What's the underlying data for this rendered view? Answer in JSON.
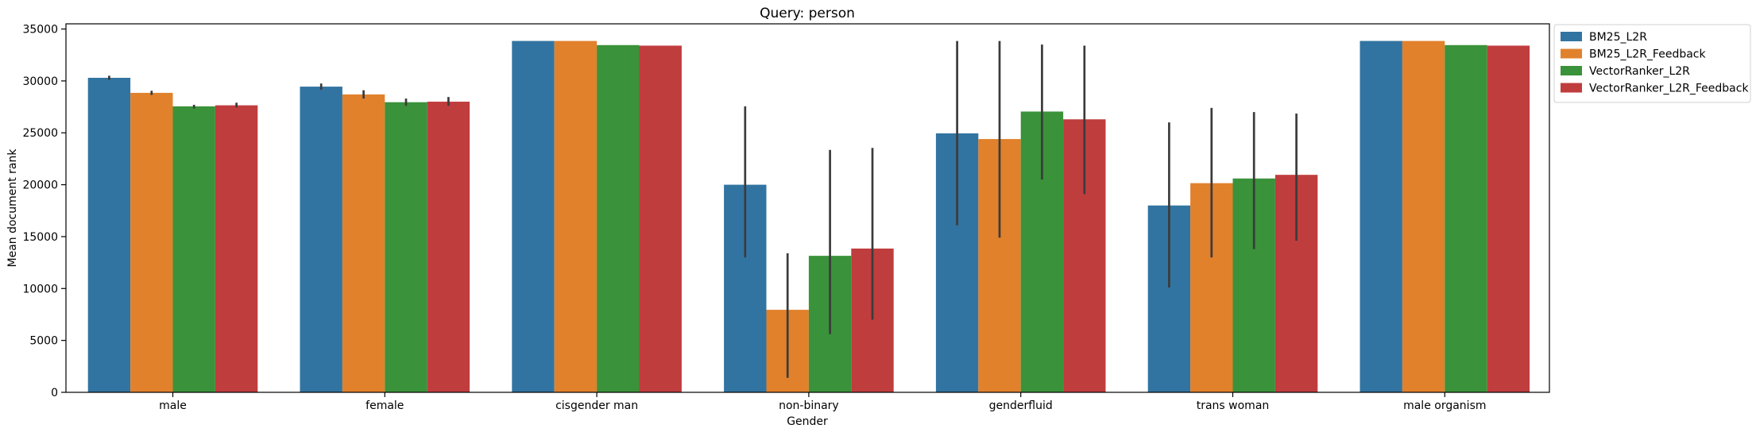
{
  "chart_data": {
    "type": "bar",
    "title": "Query: person",
    "xlabel": "Gender",
    "ylabel": "Mean document rank",
    "ylim": [
      0,
      35500
    ],
    "yticks": [
      0,
      5000,
      10000,
      15000,
      20000,
      25000,
      30000,
      35000
    ],
    "ytick_labels": [
      "0",
      "5000",
      "10000",
      "15000",
      "20000",
      "25000",
      "30000",
      "35000"
    ],
    "categories": [
      "male",
      "female",
      "cisgender man",
      "non-binary",
      "genderfluid",
      "trans woman",
      "male organism"
    ],
    "grid": false,
    "legend_position": "outside-top-right",
    "series": [
      {
        "name": "BM25_L2R",
        "color": "#3274a1",
        "values": [
          30300,
          29450,
          33850,
          20000,
          24950,
          18000,
          33850
        ],
        "err_low": [
          30100,
          29150,
          33850,
          13000,
          16100,
          10100,
          33850
        ],
        "err_high": [
          30500,
          29750,
          33850,
          27550,
          33850,
          26000,
          33850
        ]
      },
      {
        "name": "BM25_L2R_Feedback",
        "color": "#e1812c",
        "values": [
          28850,
          28700,
          33850,
          7950,
          24400,
          20150,
          33850
        ],
        "err_low": [
          28650,
          28300,
          33850,
          1400,
          14900,
          13000,
          33850
        ],
        "err_high": [
          29050,
          29100,
          33850,
          13400,
          33850,
          27400,
          33850
        ]
      },
      {
        "name": "VectorRanker_L2R",
        "color": "#3a923a",
        "values": [
          27550,
          27950,
          33450,
          13150,
          27050,
          20600,
          33450
        ],
        "err_low": [
          27350,
          27600,
          33450,
          5600,
          20500,
          13800,
          33450
        ],
        "err_high": [
          27700,
          28300,
          33450,
          23350,
          33500,
          27000,
          33450
        ]
      },
      {
        "name": "VectorRanker_L2R_Feedback",
        "color": "#c03d3e",
        "values": [
          27650,
          28000,
          33400,
          13850,
          26300,
          20950,
          33400
        ],
        "err_low": [
          27450,
          27600,
          33400,
          7000,
          19100,
          14600,
          33400
        ],
        "err_high": [
          27900,
          28450,
          33400,
          23550,
          33400,
          26850,
          33400
        ]
      }
    ]
  }
}
